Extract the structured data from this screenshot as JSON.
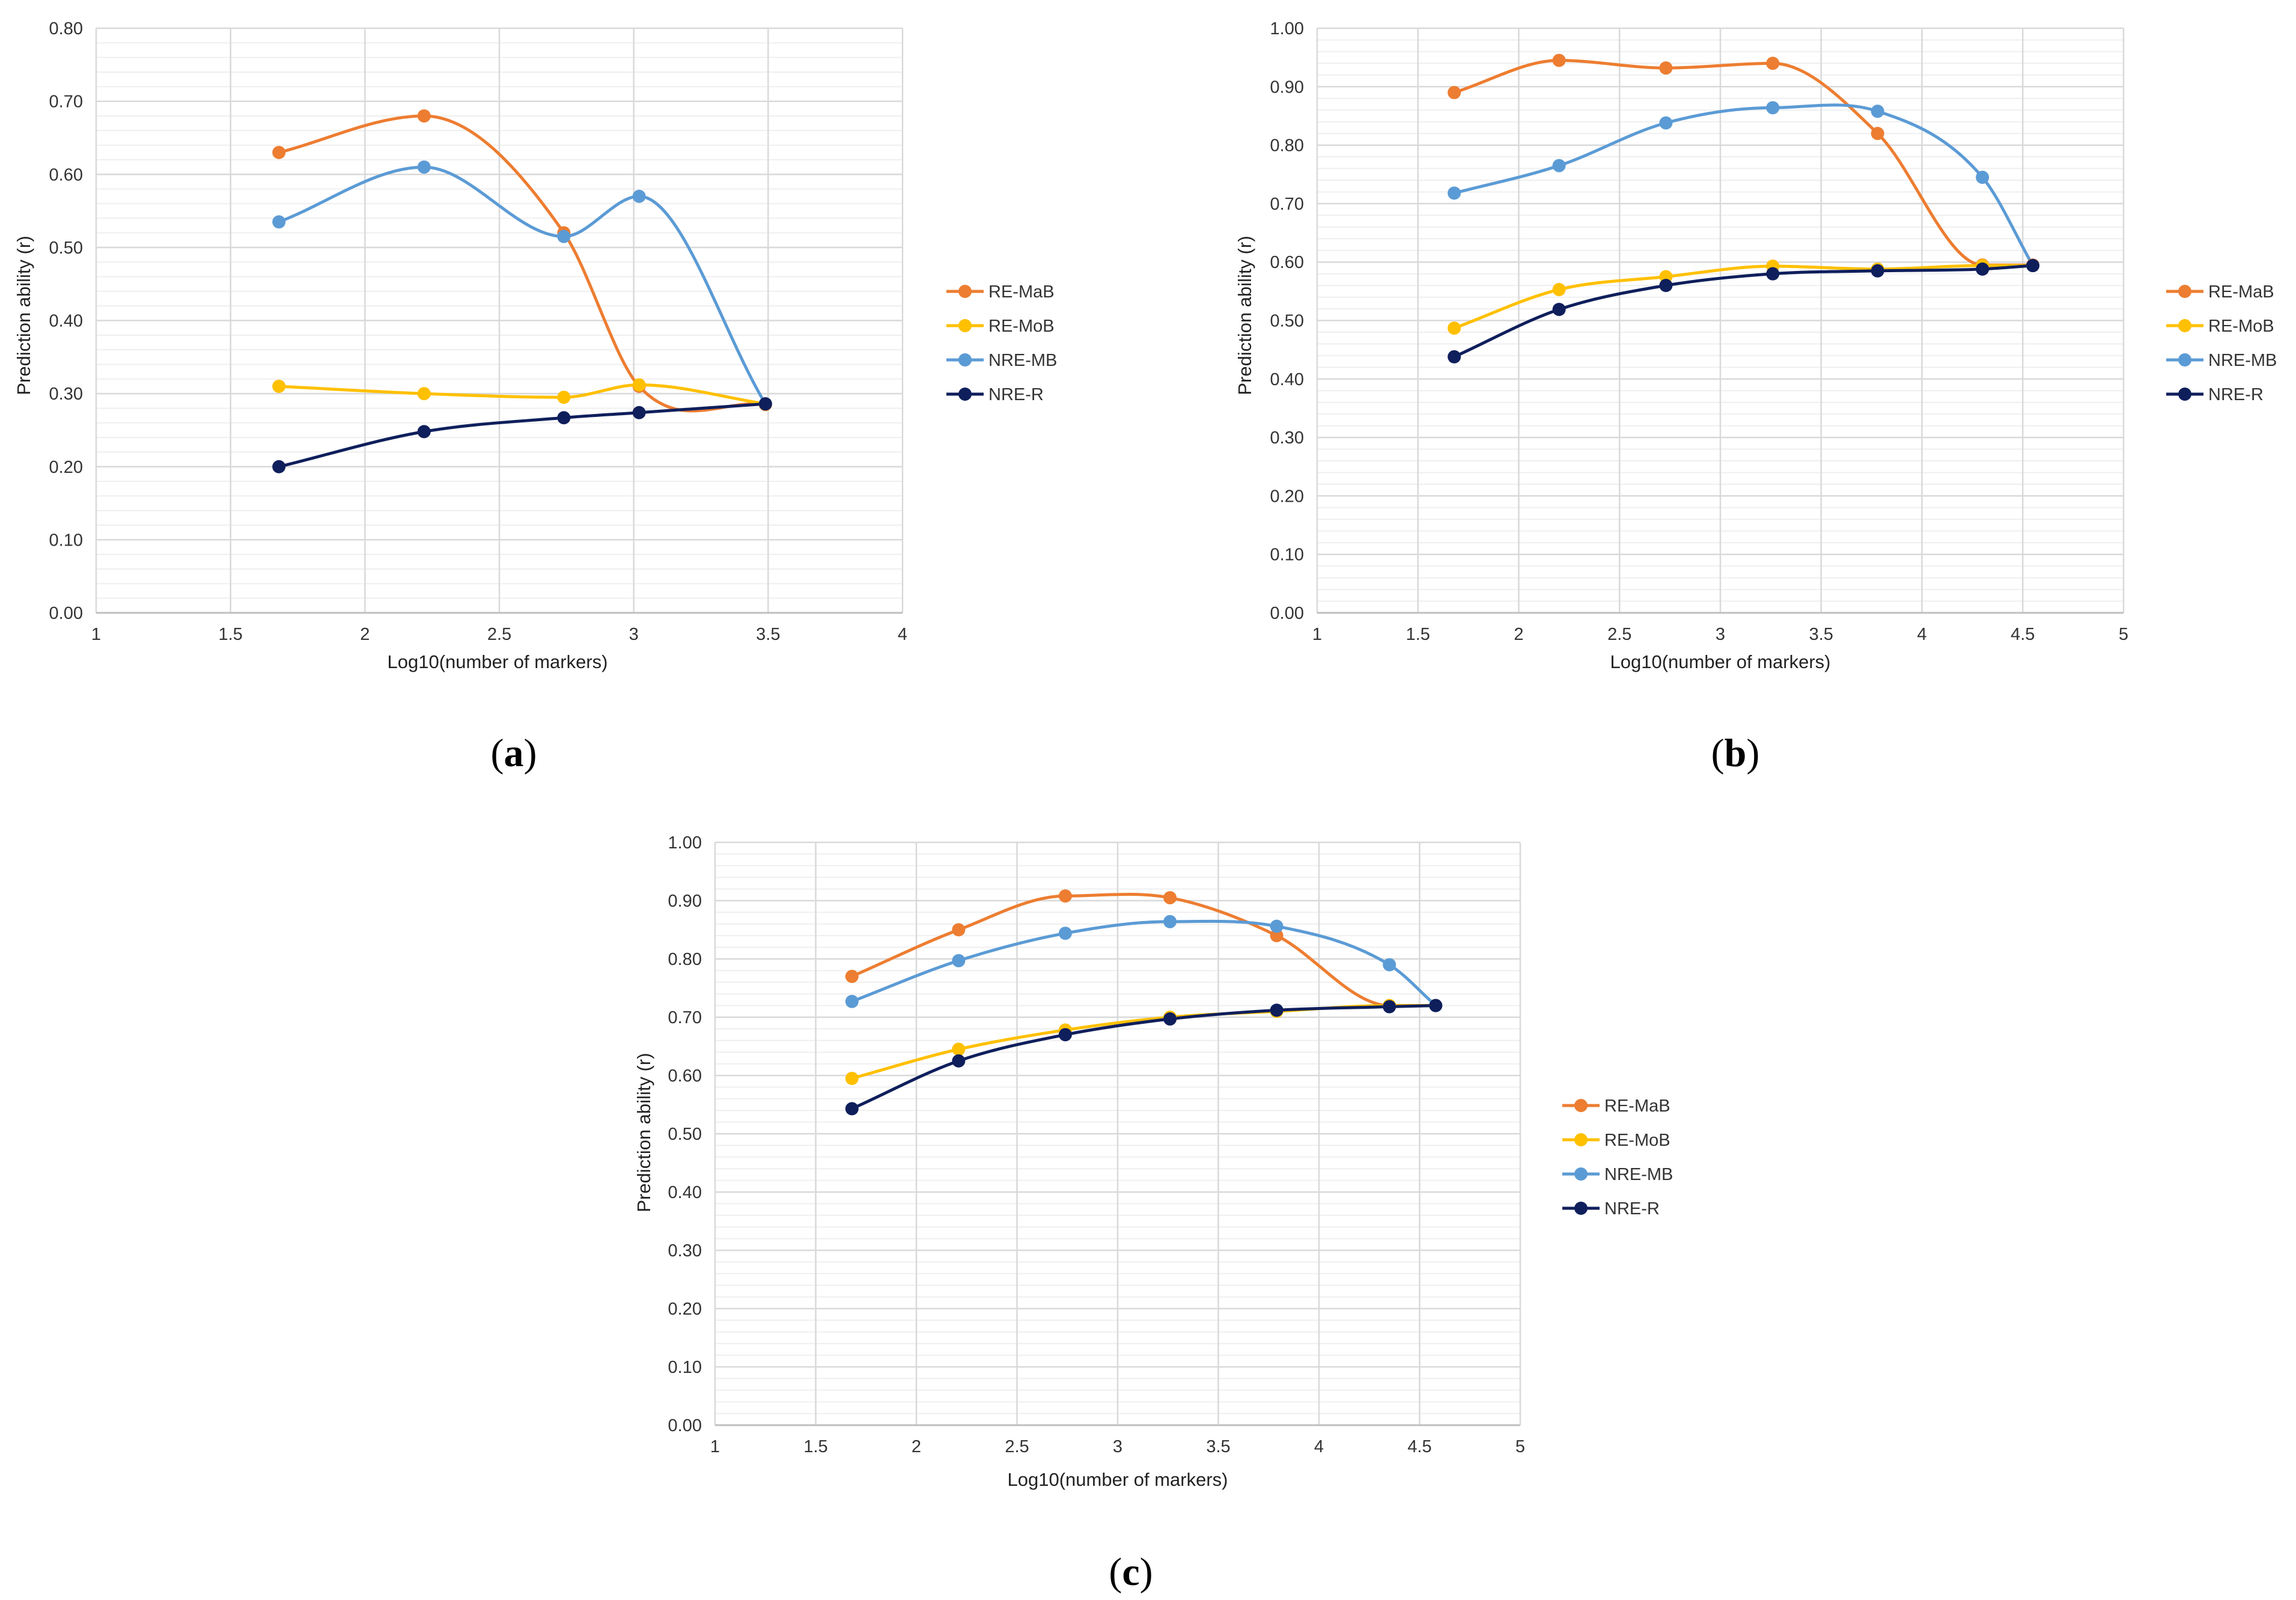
{
  "figure": {
    "panels": [
      "a",
      "b",
      "c"
    ]
  },
  "colors": {
    "RE-MaB": "#ED7D31",
    "RE-MoB": "#FFC000",
    "NRE-MB": "#5B9BD5",
    "NRE-R": "#0F1F5C",
    "grid_major": "#D9D9D9",
    "grid_minor": "#EFEFEF",
    "axis": "#BFBFBF"
  },
  "chart_data": [
    {
      "id": "a",
      "type": "line",
      "panel_label": "a",
      "title": "",
      "xlabel": "Log10(number of markers)",
      "ylabel": "Prediction ability (r)",
      "xlim": [
        1,
        4
      ],
      "ylim": [
        0,
        0.8
      ],
      "xticks": [
        1,
        1.5,
        2,
        2.5,
        3,
        3.5,
        4
      ],
      "xtick_labels": [
        "1",
        "1.5",
        "2",
        "2.5",
        "3",
        "3.5",
        "4"
      ],
      "yticks": [
        0,
        0.1,
        0.2,
        0.3,
        0.4,
        0.5,
        0.6,
        0.7,
        0.8
      ],
      "ytick_labels": [
        "0.00",
        "0.10",
        "0.20",
        "0.30",
        "0.40",
        "0.50",
        "0.60",
        "0.70",
        "0.80"
      ],
      "grid": true,
      "legend_position": "right",
      "series": [
        {
          "name": "RE-MaB",
          "x": [
            1.68,
            2.22,
            2.74,
            3.02,
            3.49
          ],
          "y": [
            0.63,
            0.68,
            0.52,
            0.31,
            0.285
          ]
        },
        {
          "name": "RE-MoB",
          "x": [
            1.68,
            2.22,
            2.74,
            3.02,
            3.49
          ],
          "y": [
            0.31,
            0.3,
            0.295,
            0.312,
            0.286
          ]
        },
        {
          "name": "NRE-MB",
          "x": [
            1.68,
            2.22,
            2.74,
            3.02,
            3.49
          ],
          "y": [
            0.535,
            0.61,
            0.515,
            0.57,
            0.286
          ]
        },
        {
          "name": "NRE-R",
          "x": [
            1.68,
            2.22,
            2.74,
            3.02,
            3.49
          ],
          "y": [
            0.2,
            0.248,
            0.267,
            0.274,
            0.286
          ]
        }
      ]
    },
    {
      "id": "b",
      "type": "line",
      "panel_label": "b",
      "title": "",
      "xlabel": "Log10(number of markers)",
      "ylabel": "Prediction ability (r)",
      "xlim": [
        1,
        5
      ],
      "ylim": [
        0,
        1
      ],
      "xticks": [
        1,
        1.5,
        2,
        2.5,
        3,
        3.5,
        4,
        4.5,
        5
      ],
      "xtick_labels": [
        "1",
        "1.5",
        "2",
        "2.5",
        "3",
        "3.5",
        "4",
        "4.5",
        "5"
      ],
      "yticks": [
        0,
        0.1,
        0.2,
        0.3,
        0.4,
        0.5,
        0.6,
        0.7,
        0.8,
        0.9,
        1
      ],
      "ytick_labels": [
        "0.00",
        "0.10",
        "0.20",
        "0.30",
        "0.40",
        "0.50",
        "0.60",
        "0.70",
        "0.80",
        "0.90",
        "1.00"
      ],
      "grid": true,
      "legend_position": "right",
      "series": [
        {
          "name": "RE-MaB",
          "x": [
            1.68,
            2.2,
            2.73,
            3.26,
            3.78,
            4.3,
            4.55
          ],
          "y": [
            0.89,
            0.945,
            0.932,
            0.94,
            0.82,
            0.595,
            0.595
          ]
        },
        {
          "name": "RE-MoB",
          "x": [
            1.68,
            2.2,
            2.73,
            3.26,
            3.78,
            4.3,
            4.55
          ],
          "y": [
            0.487,
            0.553,
            0.575,
            0.593,
            0.588,
            0.594,
            0.594
          ]
        },
        {
          "name": "NRE-MB",
          "x": [
            1.68,
            2.2,
            2.73,
            3.26,
            3.78,
            4.3,
            4.55
          ],
          "y": [
            0.718,
            0.765,
            0.838,
            0.864,
            0.858,
            0.745,
            0.594
          ]
        },
        {
          "name": "NRE-R",
          "x": [
            1.68,
            2.2,
            2.73,
            3.26,
            3.78,
            4.3,
            4.55
          ],
          "y": [
            0.438,
            0.519,
            0.56,
            0.58,
            0.585,
            0.588,
            0.594
          ]
        }
      ]
    },
    {
      "id": "c",
      "type": "line",
      "panel_label": "c",
      "title": "",
      "xlabel": "Log10(number of markers)",
      "ylabel": "Prediction ability (r)",
      "xlim": [
        1,
        5
      ],
      "ylim": [
        0,
        1
      ],
      "xticks": [
        1,
        1.5,
        2,
        2.5,
        3,
        3.5,
        4,
        4.5,
        5
      ],
      "xtick_labels": [
        "1",
        "1.5",
        "2",
        "2.5",
        "3",
        "3.5",
        "4",
        "4.5",
        "5"
      ],
      "yticks": [
        0,
        0.1,
        0.2,
        0.3,
        0.4,
        0.5,
        0.6,
        0.7,
        0.8,
        0.9,
        1
      ],
      "ytick_labels": [
        "0.00",
        "0.10",
        "0.20",
        "0.30",
        "0.40",
        "0.50",
        "0.60",
        "0.70",
        "0.80",
        "0.90",
        "1.00"
      ],
      "grid": true,
      "legend_position": "right",
      "series": [
        {
          "name": "RE-MaB",
          "x": [
            1.68,
            2.21,
            2.74,
            3.26,
            3.79,
            4.35,
            4.58
          ],
          "y": [
            0.77,
            0.85,
            0.908,
            0.905,
            0.84,
            0.72,
            0.72
          ]
        },
        {
          "name": "RE-MoB",
          "x": [
            1.68,
            2.21,
            2.74,
            3.26,
            3.79,
            4.35,
            4.58
          ],
          "y": [
            0.595,
            0.645,
            0.678,
            0.7,
            0.71,
            0.72,
            0.72
          ]
        },
        {
          "name": "NRE-MB",
          "x": [
            1.68,
            2.21,
            2.74,
            3.26,
            3.79,
            4.35,
            4.58
          ],
          "y": [
            0.727,
            0.797,
            0.844,
            0.864,
            0.856,
            0.79,
            0.72
          ]
        },
        {
          "name": "NRE-R",
          "x": [
            1.68,
            2.21,
            2.74,
            3.26,
            3.79,
            4.35,
            4.58
          ],
          "y": [
            0.543,
            0.625,
            0.67,
            0.697,
            0.712,
            0.718,
            0.72
          ]
        }
      ]
    }
  ]
}
